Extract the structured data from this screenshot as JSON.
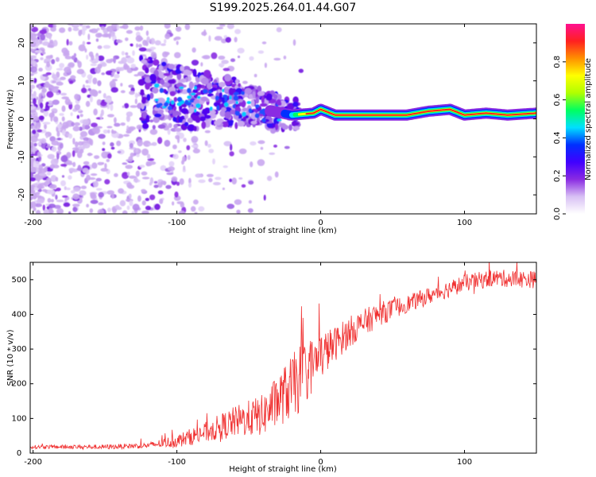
{
  "title": "S199.2025.264.01.44.G07",
  "chart_data": [
    {
      "type": "heatmap",
      "title": "S199.2025.264.01.44.G07",
      "xlabel": "Height of straight line (km)",
      "ylabel": "Frequency (Hz)",
      "xlim": [
        -202,
        150
      ],
      "ylim": [
        -25,
        25
      ],
      "xticks": [
        -200,
        -100,
        0,
        100
      ],
      "yticks": [
        -20,
        -10,
        0,
        10,
        20
      ],
      "colorbar": {
        "label": "Normalized spectral amplitude",
        "range": [
          0,
          1
        ],
        "ticks": [
          "0.0",
          "0.2",
          "0.4",
          "0.6",
          "0.8"
        ],
        "colormap": [
          "#ffffff",
          "#d8c0f4",
          "#8a2be2",
          "#4000ff",
          "#0030ff",
          "#00e0ff",
          "#00ff60",
          "#b0ff00",
          "#ffff00",
          "#ff9000",
          "#ff2020",
          "#ff1090"
        ]
      },
      "ridge": [
        {
          "x": -120,
          "y": 6.5
        },
        {
          "x": -100,
          "y": 5.5
        },
        {
          "x": -80,
          "y": 5.0
        },
        {
          "x": -60,
          "y": 4.5
        },
        {
          "x": -40,
          "y": 2.5
        },
        {
          "x": -20,
          "y": 1.0
        },
        {
          "x": -5,
          "y": 1.5
        },
        {
          "x": 0,
          "y": 2.5
        },
        {
          "x": 10,
          "y": 1.0
        },
        {
          "x": 60,
          "y": 1.0
        },
        {
          "x": 75,
          "y": 2.0
        },
        {
          "x": 90,
          "y": 2.5
        },
        {
          "x": 100,
          "y": 1.0
        },
        {
          "x": 115,
          "y": 1.5
        },
        {
          "x": 130,
          "y": 1.0
        },
        {
          "x": 150,
          "y": 1.5
        }
      ]
    },
    {
      "type": "line",
      "xlabel": "Height of straight line (km)",
      "ylabel": "SNR (10 * v/v)",
      "xlim": [
        -202,
        150
      ],
      "ylim": [
        0,
        550
      ],
      "xticks": [
        -200,
        -100,
        0,
        100
      ],
      "yticks": [
        0,
        100,
        200,
        300,
        400,
        500
      ],
      "color": "#f03030",
      "series": [
        {
          "name": "SNR",
          "trend": [
            {
              "x": -202,
              "y": 18
            },
            {
              "x": -150,
              "y": 18
            },
            {
              "x": -120,
              "y": 22
            },
            {
              "x": -100,
              "y": 35
            },
            {
              "x": -80,
              "y": 60
            },
            {
              "x": -60,
              "y": 90
            },
            {
              "x": -40,
              "y": 110
            },
            {
              "x": -20,
              "y": 190
            },
            {
              "x": 0,
              "y": 280
            },
            {
              "x": 20,
              "y": 350
            },
            {
              "x": 40,
              "y": 400
            },
            {
              "x": 60,
              "y": 430
            },
            {
              "x": 80,
              "y": 460
            },
            {
              "x": 100,
              "y": 490
            },
            {
              "x": 120,
              "y": 505
            },
            {
              "x": 150,
              "y": 500
            }
          ],
          "noise": [
            {
              "x": -202,
              "y": 5
            },
            {
              "x": -120,
              "y": 8
            },
            {
              "x": -80,
              "y": 30
            },
            {
              "x": -40,
              "y": 60
            },
            {
              "x": -15,
              "y": 100
            },
            {
              "x": 10,
              "y": 50
            },
            {
              "x": 60,
              "y": 25
            },
            {
              "x": 150,
              "y": 25
            }
          ]
        }
      ]
    }
  ]
}
